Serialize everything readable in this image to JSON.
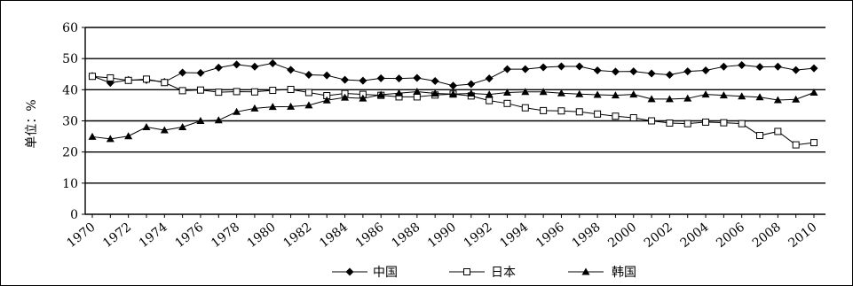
{
  "chart_data": {
    "type": "line",
    "title": "",
    "xlabel": "",
    "ylabel": "单位：%",
    "ylim": [
      0,
      60
    ],
    "yticks": [
      0,
      10,
      20,
      30,
      40,
      50,
      60
    ],
    "xlim": [
      1970,
      2010
    ],
    "xticks": [
      "1970",
      "1972",
      "1974",
      "1976",
      "1978",
      "1980",
      "1982",
      "1984",
      "1986",
      "1988",
      "1990",
      "1992",
      "1994",
      "1996",
      "1998",
      "2000",
      "2002",
      "2004",
      "2006",
      "2008",
      "2010"
    ],
    "grid": "horizontal",
    "legend_position": "bottom",
    "x": [
      1970,
      1971,
      1972,
      1973,
      1974,
      1975,
      1976,
      1977,
      1978,
      1979,
      1980,
      1981,
      1982,
      1983,
      1984,
      1985,
      1986,
      1987,
      1988,
      1989,
      1990,
      1991,
      1992,
      1993,
      1994,
      1995,
      1996,
      1997,
      1998,
      1999,
      2000,
      2001,
      2002,
      2003,
      2004,
      2005,
      2006,
      2007,
      2008,
      2009,
      2010
    ],
    "series": [
      {
        "name": "中国",
        "marker": "diamond",
        "values": [
          44.4,
          42.2,
          43.1,
          43.1,
          42.5,
          45.5,
          45.4,
          47.1,
          48.1,
          47.4,
          48.5,
          46.4,
          44.8,
          44.6,
          43.2,
          42.9,
          43.7,
          43.6,
          43.8,
          42.8,
          41.3,
          41.8,
          43.6,
          46.6,
          46.6,
          47.2,
          47.5,
          47.5,
          46.2,
          45.8,
          45.9,
          45.2,
          44.8,
          45.9,
          46.2,
          47.4,
          47.9,
          47.3,
          47.4,
          46.3,
          46.9
        ]
      },
      {
        "name": "日本",
        "marker": "square",
        "values": [
          44.3,
          43.8,
          43.0,
          43.4,
          42.3,
          39.7,
          39.9,
          39.2,
          39.4,
          39.3,
          39.8,
          40.1,
          39.1,
          38.1,
          38.8,
          38.5,
          38.2,
          37.7,
          37.7,
          38.3,
          38.6,
          38.0,
          36.5,
          35.6,
          34.2,
          33.3,
          33.2,
          32.9,
          32.2,
          31.5,
          31.0,
          30.0,
          29.3,
          29.1,
          29.6,
          29.4,
          29.1,
          25.3,
          26.6,
          22.3,
          23.0
        ]
      },
      {
        "name": "韩国",
        "marker": "triangle",
        "values": [
          24.9,
          24.2,
          25.1,
          28.0,
          27.0,
          28.0,
          30.0,
          30.2,
          32.9,
          34.0,
          34.5,
          34.6,
          35.0,
          36.6,
          37.5,
          37.2,
          38.4,
          38.9,
          39.4,
          38.8,
          38.6,
          38.8,
          38.5,
          39.1,
          39.3,
          39.3,
          38.9,
          38.6,
          38.4,
          38.2,
          38.5,
          37.0,
          37.0,
          37.2,
          38.5,
          38.2,
          37.9,
          37.6,
          36.7,
          36.9,
          39.1
        ]
      }
    ]
  }
}
